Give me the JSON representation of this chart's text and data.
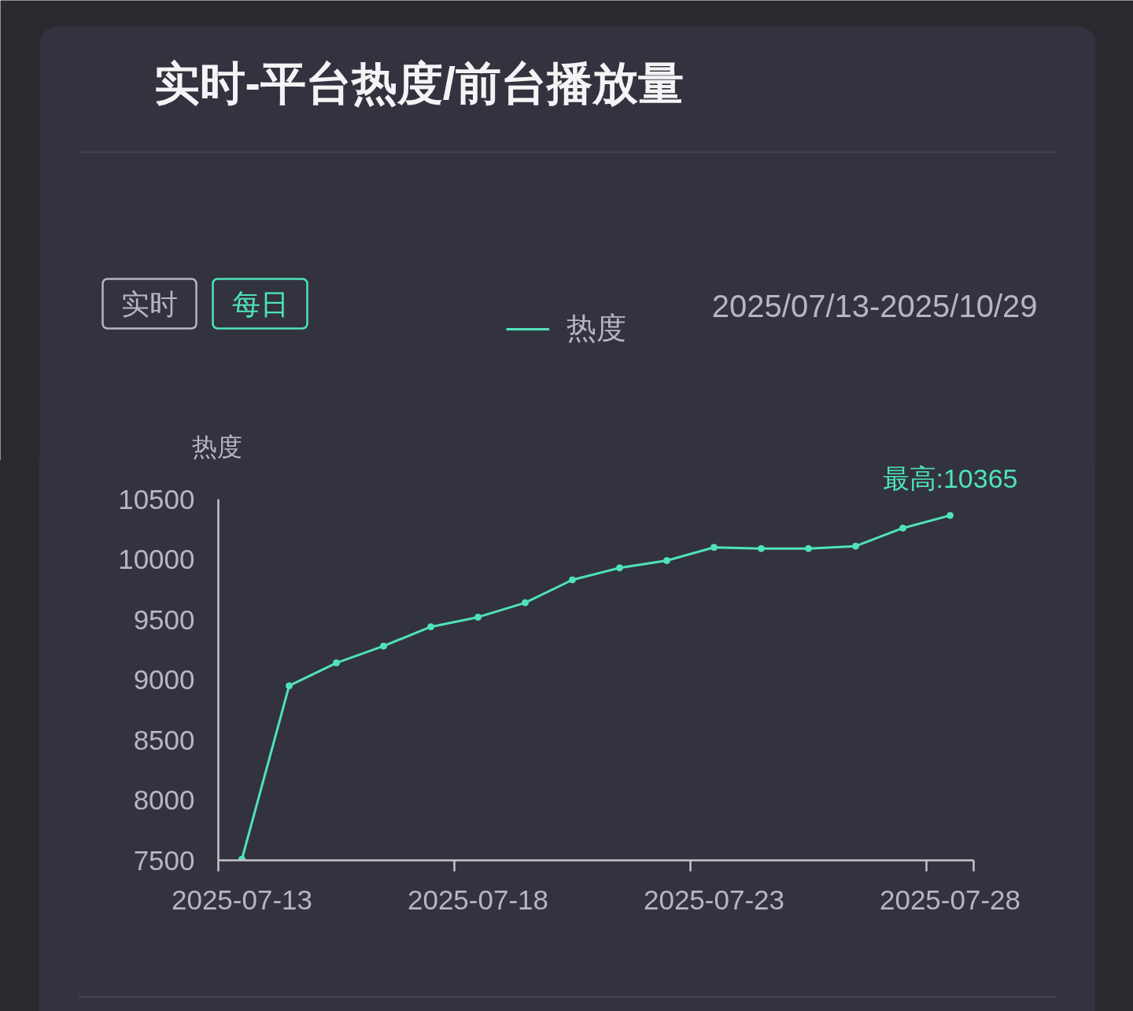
{
  "chart_data": {
    "type": "line",
    "title": "实时-平台热度/前台播放量",
    "ylabel": "热度",
    "categories": [
      "2025-07-13",
      null,
      null,
      null,
      null,
      "2025-07-18",
      null,
      null,
      null,
      null,
      "2025-07-23",
      null,
      null,
      null,
      null,
      "2025-07-28"
    ],
    "series": [
      {
        "name": "热度",
        "color": "#4fe3b8",
        "values": [
          7510,
          8950,
          9140,
          9280,
          9440,
          9520,
          9640,
          9830,
          9930,
          9990,
          10100,
          10090,
          10090,
          10110,
          10260,
          10365
        ]
      }
    ],
    "ylim": [
      7500,
      10500
    ],
    "yticks": [
      7500,
      8000,
      8500,
      9000,
      9500,
      10000,
      10500
    ],
    "legend": "top",
    "marker": "circle",
    "line_style": "solid",
    "annotations": [
      "实时",
      "每日",
      "2025/07/13-2025/10/29",
      {
        "text": "最高:10365",
        "x": "2025-07-28",
        "y": 10365
      }
    ]
  }
}
